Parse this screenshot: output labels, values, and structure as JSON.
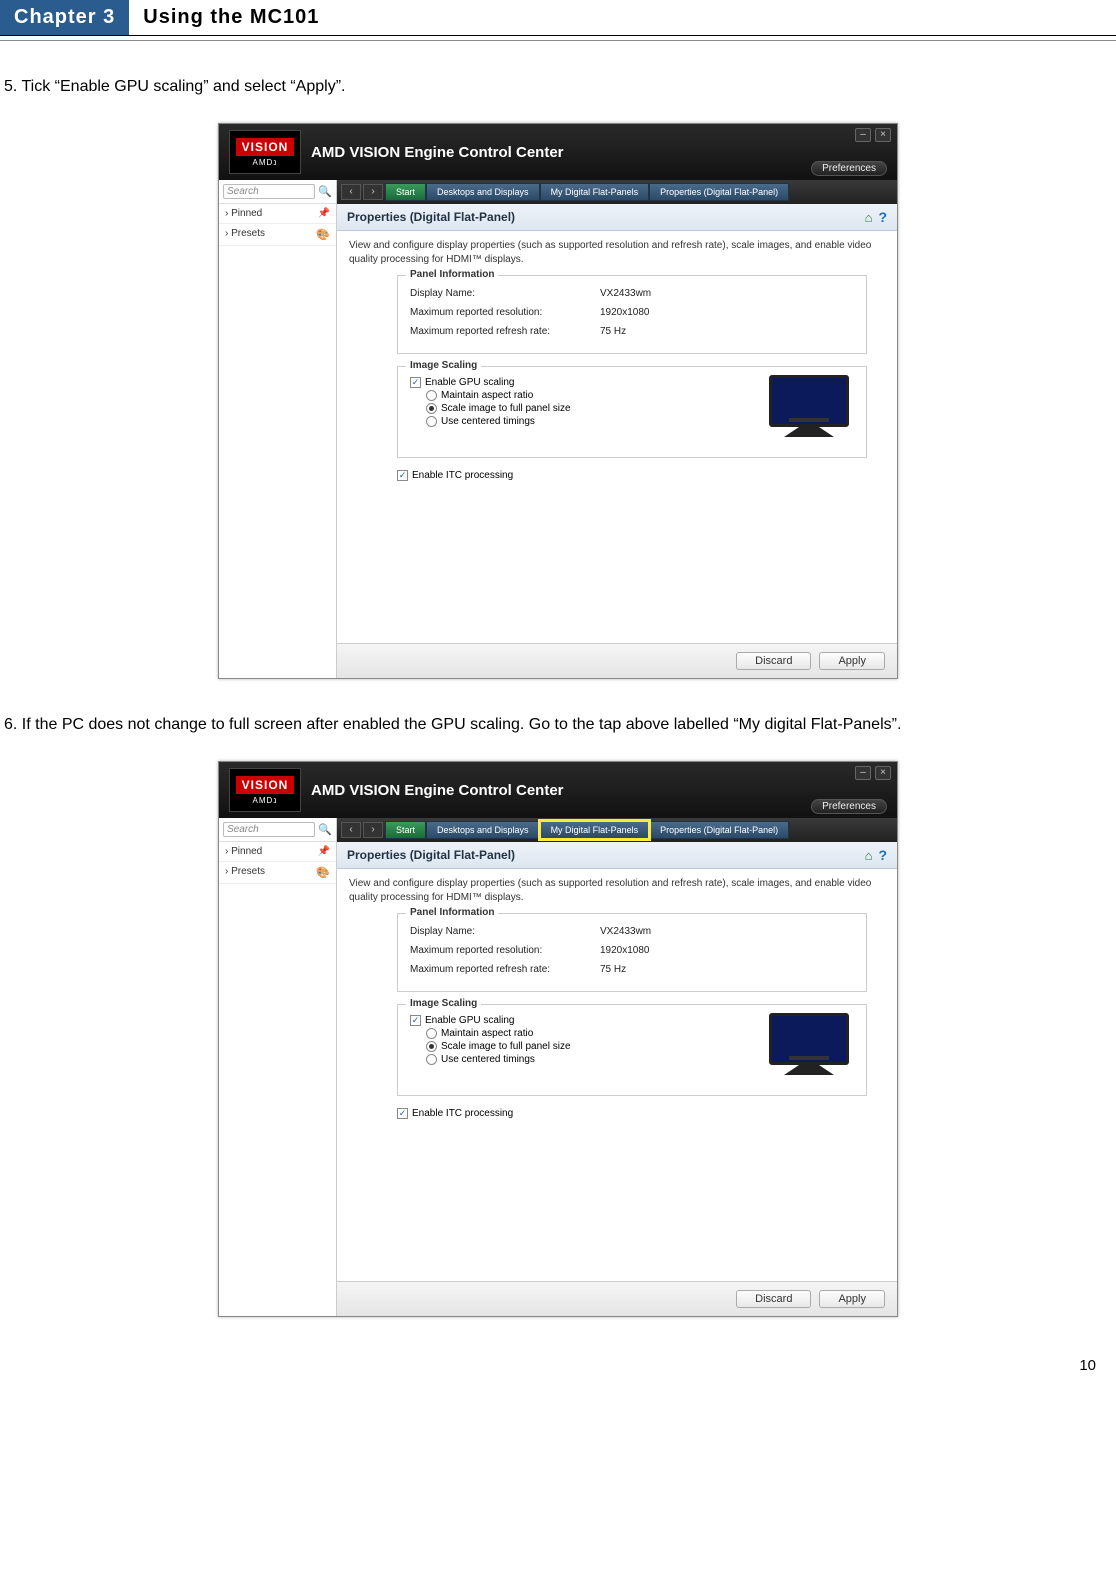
{
  "chapter": {
    "badge": "Chapter 3",
    "title": "Using the MC101"
  },
  "step5": "5. Tick “Enable GPU scaling” and select “Apply”.",
  "step6": "6. If the PC does not change to full screen after enabled the GPU scaling. Go to the tap above labelled “My digital Flat-Panels”.",
  "pageNumber": "10",
  "app": {
    "logoTop": "VISION",
    "logoBottom": "AMDנ",
    "title": "AMD VISION Engine Control Center",
    "preferences": "Preferences",
    "search": "Search",
    "sidebar": {
      "pinned": "Pinned",
      "presets": "Presets"
    },
    "tabs": {
      "start": "Start",
      "desktops": "Desktops and Displays",
      "flatPanels": "My Digital Flat-Panels",
      "properties": "Properties (Digital Flat-Panel)"
    },
    "paneTitle": "Properties (Digital Flat-Panel)",
    "paneDesc": "View and configure display properties (such as supported resolution and refresh rate), scale images, and enable video quality processing for HDMI™ displays.",
    "panelInfo": {
      "legend": "Panel Information",
      "displayNameLabel": "Display Name:",
      "displayNameVal": "VX2433wm",
      "maxResLabel": "Maximum reported resolution:",
      "maxResVal": "1920x1080",
      "maxRateLabel": "Maximum reported refresh rate:",
      "maxRateVal": "75 Hz"
    },
    "scaling": {
      "legend": "Image Scaling",
      "enableGpu": "Enable GPU scaling",
      "maintain": "Maintain aspect ratio",
      "fullPanel": "Scale image to full panel size",
      "centered": "Use centered timings",
      "enableItc": "Enable ITC processing"
    },
    "buttons": {
      "discard": "Discard",
      "apply": "Apply"
    }
  }
}
